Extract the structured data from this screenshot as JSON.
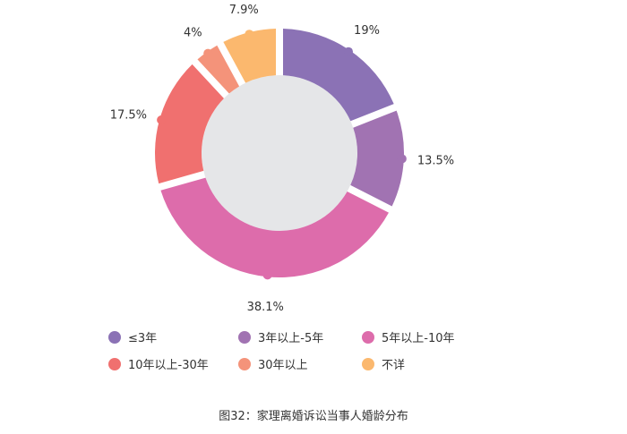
{
  "chart_data": {
    "type": "pie",
    "variant": "donut",
    "categories": [
      "≤3年",
      "3年以上-5年",
      "5年以上-10年",
      "10年以上-30年",
      "30年以上",
      "不详"
    ],
    "values": [
      19,
      13.5,
      38.1,
      17.5,
      4,
      7.9
    ],
    "value_labels": [
      "19%",
      "13.5%",
      "38.1%",
      "17.5%",
      "4%",
      "7.9%"
    ],
    "colors": [
      "#8b72b5",
      "#a173b2",
      "#dd6cab",
      "#f0706f",
      "#f4937a",
      "#fbb86e"
    ],
    "center_color": "#e5e6e8",
    "legend_position": "bottom",
    "caption": "图32：家理离婚诉讼当事人婚龄分布"
  }
}
